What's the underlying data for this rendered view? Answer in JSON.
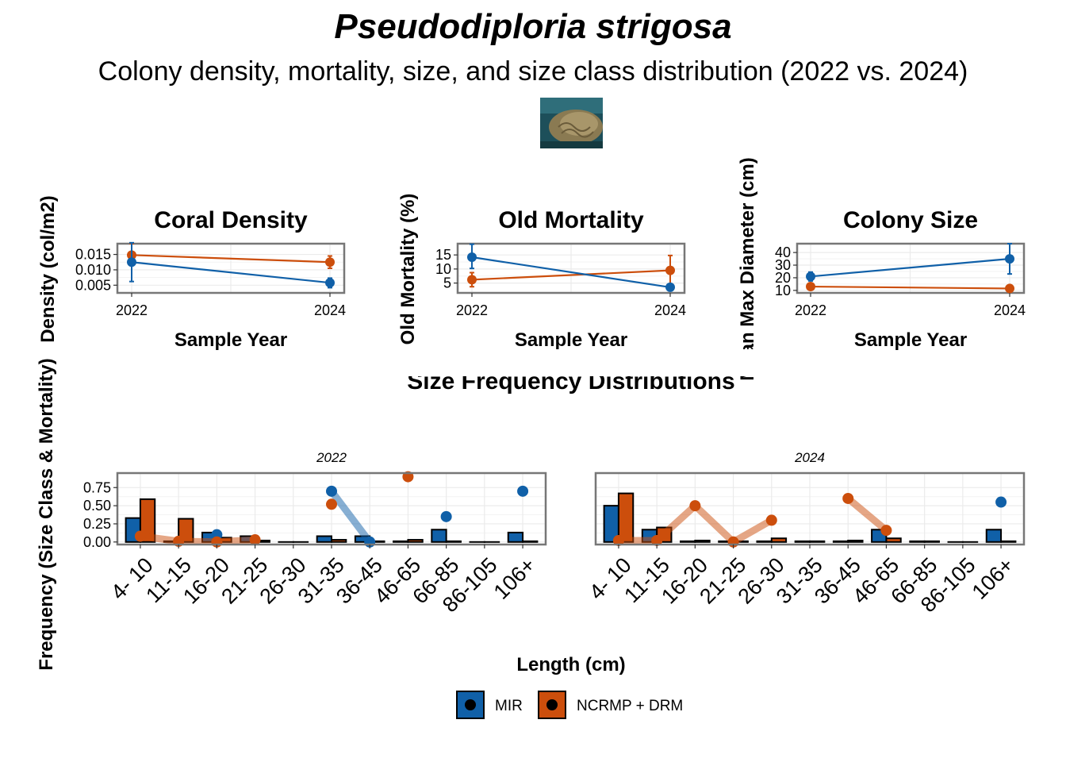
{
  "header": {
    "title": "Pseudodiploria strigosa",
    "subtitle": "Colony density, mortality, size, and size class distribution (2022 vs. 2024)"
  },
  "colors": {
    "MIR": "#1060a8",
    "NCRMP + DRM": "#cc4e0c",
    "panel_border": "#777777",
    "grid": "#ebebeb"
  },
  "chart_data": [
    {
      "type": "line",
      "title": "Coral Density",
      "xlabel": "Sample Year",
      "ylabel": "Density (col/m2)",
      "x": [
        2022,
        2024
      ],
      "yticks": [
        0.005,
        0.01,
        0.015
      ],
      "ytick_labels": [
        "0.005",
        "0.010",
        "0.015"
      ],
      "ylim": [
        0.0025,
        0.0185
      ],
      "grid": true,
      "series": [
        {
          "name": "MIR",
          "values": [
            0.0125,
            0.0058
          ],
          "err_low": [
            0.0062,
            0.0042
          ],
          "err_high": [
            0.0188,
            0.0073
          ]
        },
        {
          "name": "NCRMP + DRM",
          "values": [
            0.0148,
            0.0125
          ],
          "err_low": [
            0.0115,
            0.0105
          ],
          "err_high": [
            0.0185,
            0.0145
          ]
        }
      ]
    },
    {
      "type": "line",
      "title": "Old Mortality (%)",
      "display_title": "Old Mortality",
      "xlabel": "Sample Year",
      "ylabel": "Old Mortality (%)",
      "x": [
        2022,
        2024
      ],
      "yticks": [
        5,
        10,
        15
      ],
      "ytick_labels": [
        "5",
        "10",
        "15"
      ],
      "ylim": [
        1.5,
        19
      ],
      "grid": true,
      "series": [
        {
          "name": "MIR",
          "values": [
            14.2,
            3.5
          ],
          "err_low": [
            10.2,
            2.8
          ],
          "err_high": [
            18.8,
            4.3
          ]
        },
        {
          "name": "NCRMP + DRM",
          "values": [
            6.2,
            9.5
          ],
          "err_low": [
            3.7,
            4.5
          ],
          "err_high": [
            8.7,
            14.8
          ]
        }
      ]
    },
    {
      "type": "line",
      "title": "Colony Size",
      "xlabel": "Sample Year",
      "ylabel": "Mean Max Diameter (cm)",
      "x": [
        2022,
        2024
      ],
      "yticks": [
        10,
        20,
        30,
        40
      ],
      "ytick_labels": [
        "10",
        "20",
        "30",
        "40"
      ],
      "ylim": [
        8,
        47
      ],
      "grid": true,
      "series": [
        {
          "name": "MIR",
          "values": [
            21,
            35
          ],
          "err_low": [
            17.5,
            23
          ],
          "err_high": [
            24.5,
            47
          ]
        },
        {
          "name": "NCRMP + DRM",
          "values": [
            13,
            11.5
          ],
          "err_low": [
            12,
            11
          ],
          "err_high": [
            14,
            12
          ]
        }
      ]
    },
    {
      "type": "bar",
      "title": "Size Frequency Distributions",
      "xlabel": "Length (cm)",
      "ylabel": "Frequency (Size Class & Mortality)",
      "categories": [
        "4- 10",
        "11-15",
        "16-20",
        "21-25",
        "26-30",
        "31-35",
        "36-45",
        "46-65",
        "66-85",
        "86-105",
        "106+"
      ],
      "yticks": [
        0,
        0.25,
        0.5,
        0.75
      ],
      "ytick_labels": [
        "0.00",
        "0.25",
        "0.50",
        "0.75"
      ],
      "ylim": [
        -0.035,
        0.95
      ],
      "grid": true,
      "legend": {
        "position": "bottom",
        "items": [
          "MIR",
          "NCRMP + DRM"
        ]
      },
      "facets": [
        {
          "label": "2022",
          "bars": {
            "MIR": [
              0.33,
              0.01,
              0.13,
              0.08,
              0.0,
              0.08,
              0.08,
              0.01,
              0.17,
              0.0,
              0.13
            ],
            "NCRMP + DRM": [
              0.59,
              0.32,
              0.06,
              0.02,
              0.0,
              0.03,
              0.01,
              0.03,
              0.01,
              0.0,
              0.01
            ]
          },
          "mortality_points": {
            "MIR": [
              null,
              null,
              0.1,
              null,
              null,
              0.7,
              0.0,
              null,
              0.35,
              null,
              0.7
            ],
            "NCRMP + DRM": [
              0.08,
              0.01,
              0.0,
              0.03,
              null,
              0.52,
              null,
              0.9,
              null,
              null,
              null
            ]
          }
        },
        {
          "label": "2024",
          "bars": {
            "MIR": [
              0.5,
              0.17,
              0.01,
              0.01,
              0.01,
              0.01,
              0.01,
              0.17,
              0.01,
              0.0,
              0.17
            ],
            "NCRMP + DRM": [
              0.67,
              0.2,
              0.02,
              0.01,
              0.05,
              0.01,
              0.02,
              0.05,
              0.01,
              0.0,
              0.01
            ]
          },
          "mortality_points": {
            "MIR": [
              null,
              null,
              null,
              null,
              null,
              null,
              null,
              null,
              null,
              null,
              0.55
            ],
            "NCRMP + DRM": [
              0.02,
              0.02,
              0.5,
              0.0,
              0.3,
              null,
              0.6,
              0.16,
              null,
              null,
              null
            ]
          }
        }
      ]
    }
  ]
}
